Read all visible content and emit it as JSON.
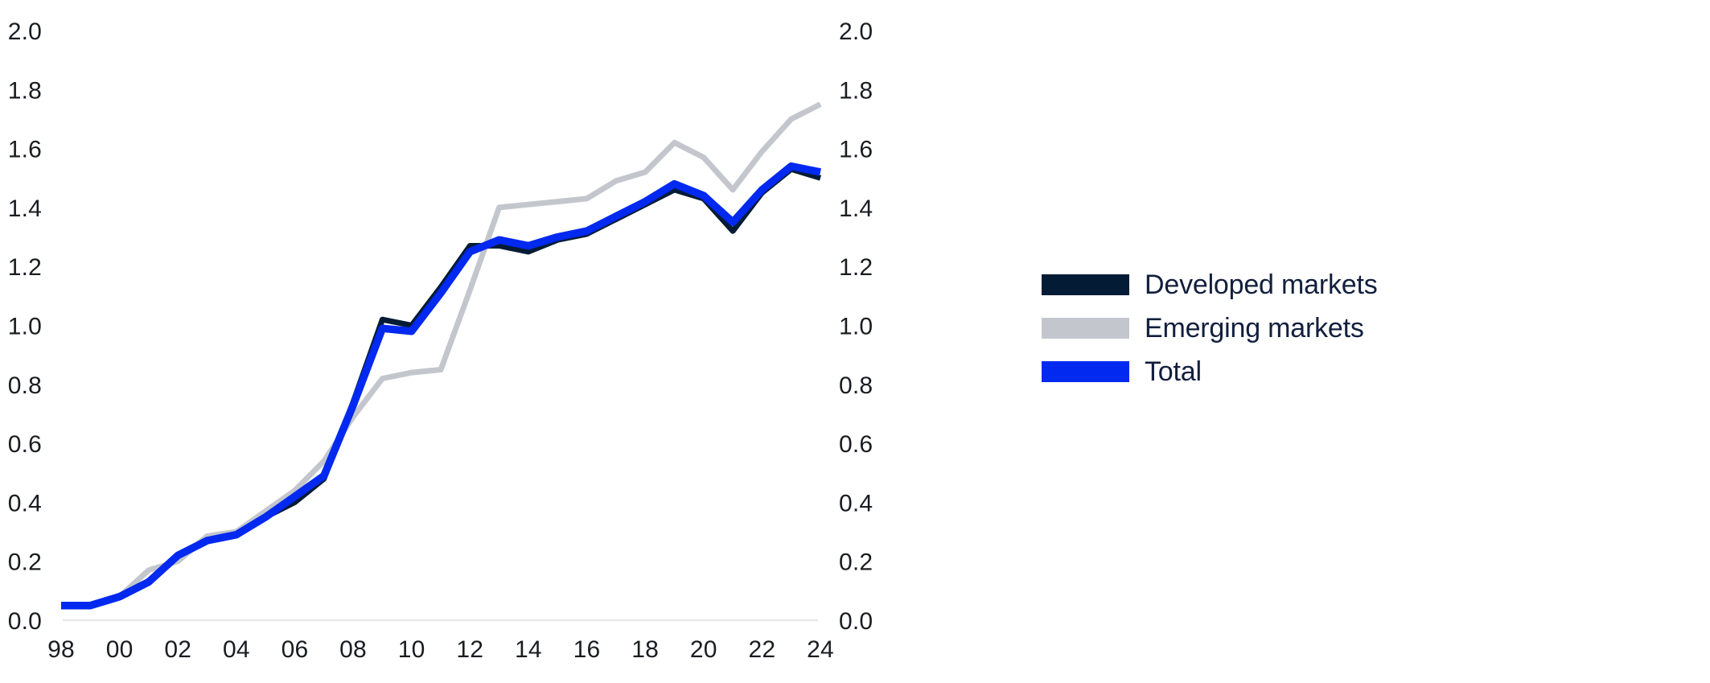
{
  "chart_data": {
    "type": "line",
    "title": "",
    "xlabel": "",
    "ylabel": "",
    "ylim": [
      0.0,
      2.0
    ],
    "grid": "baseline-only",
    "y_axis_sides": "both",
    "legend_position": "right",
    "y_ticks": [
      "0.0",
      "0.2",
      "0.4",
      "0.6",
      "0.8",
      "1.0",
      "1.2",
      "1.4",
      "1.6",
      "1.8",
      "2.0"
    ],
    "x_years": [
      1998,
      1999,
      2000,
      2001,
      2002,
      2003,
      2004,
      2005,
      2006,
      2007,
      2008,
      2009,
      2010,
      2011,
      2012,
      2013,
      2014,
      2015,
      2016,
      2017,
      2018,
      2019,
      2020,
      2021,
      2022,
      2023,
      2024
    ],
    "x_tick_years": [
      1998,
      2000,
      2002,
      2004,
      2006,
      2008,
      2010,
      2012,
      2014,
      2016,
      2018,
      2020,
      2022,
      2024
    ],
    "x_tick_labels": [
      "98",
      "00",
      "02",
      "04",
      "06",
      "08",
      "10",
      "12",
      "14",
      "16",
      "18",
      "20",
      "22",
      "24"
    ],
    "series": [
      {
        "name": "Developed markets",
        "color": "#041b36",
        "values": [
          0.05,
          0.05,
          0.08,
          0.13,
          0.22,
          0.27,
          0.29,
          0.35,
          0.4,
          0.48,
          0.74,
          1.02,
          1.0,
          1.13,
          1.27,
          1.27,
          1.25,
          1.29,
          1.31,
          1.36,
          1.41,
          1.46,
          1.43,
          1.32,
          1.45,
          1.53,
          1.5
        ]
      },
      {
        "name": "Emerging markets",
        "color": "#c3c7cd",
        "values": [
          0.05,
          0.05,
          0.08,
          0.17,
          0.2,
          0.285,
          0.3,
          0.37,
          0.44,
          0.54,
          0.69,
          0.82,
          0.84,
          0.85,
          1.12,
          1.4,
          1.41,
          1.42,
          1.43,
          1.49,
          1.52,
          1.62,
          1.57,
          1.46,
          1.59,
          1.7,
          1.75
        ]
      },
      {
        "name": "Total",
        "color": "#0229f0",
        "values": [
          0.05,
          0.05,
          0.08,
          0.13,
          0.22,
          0.27,
          0.29,
          0.35,
          0.42,
          0.49,
          0.73,
          0.99,
          0.98,
          1.11,
          1.25,
          1.29,
          1.27,
          1.3,
          1.32,
          1.37,
          1.42,
          1.48,
          1.44,
          1.35,
          1.46,
          1.54,
          1.52
        ]
      }
    ],
    "draw_order": [
      "Emerging markets",
      "Developed markets",
      "Total"
    ],
    "style_colors": {
      "axis_tick_text": "#1a1c22",
      "legend_text": "#121f3d",
      "baseline_gridline": "#e8e8ea"
    }
  }
}
